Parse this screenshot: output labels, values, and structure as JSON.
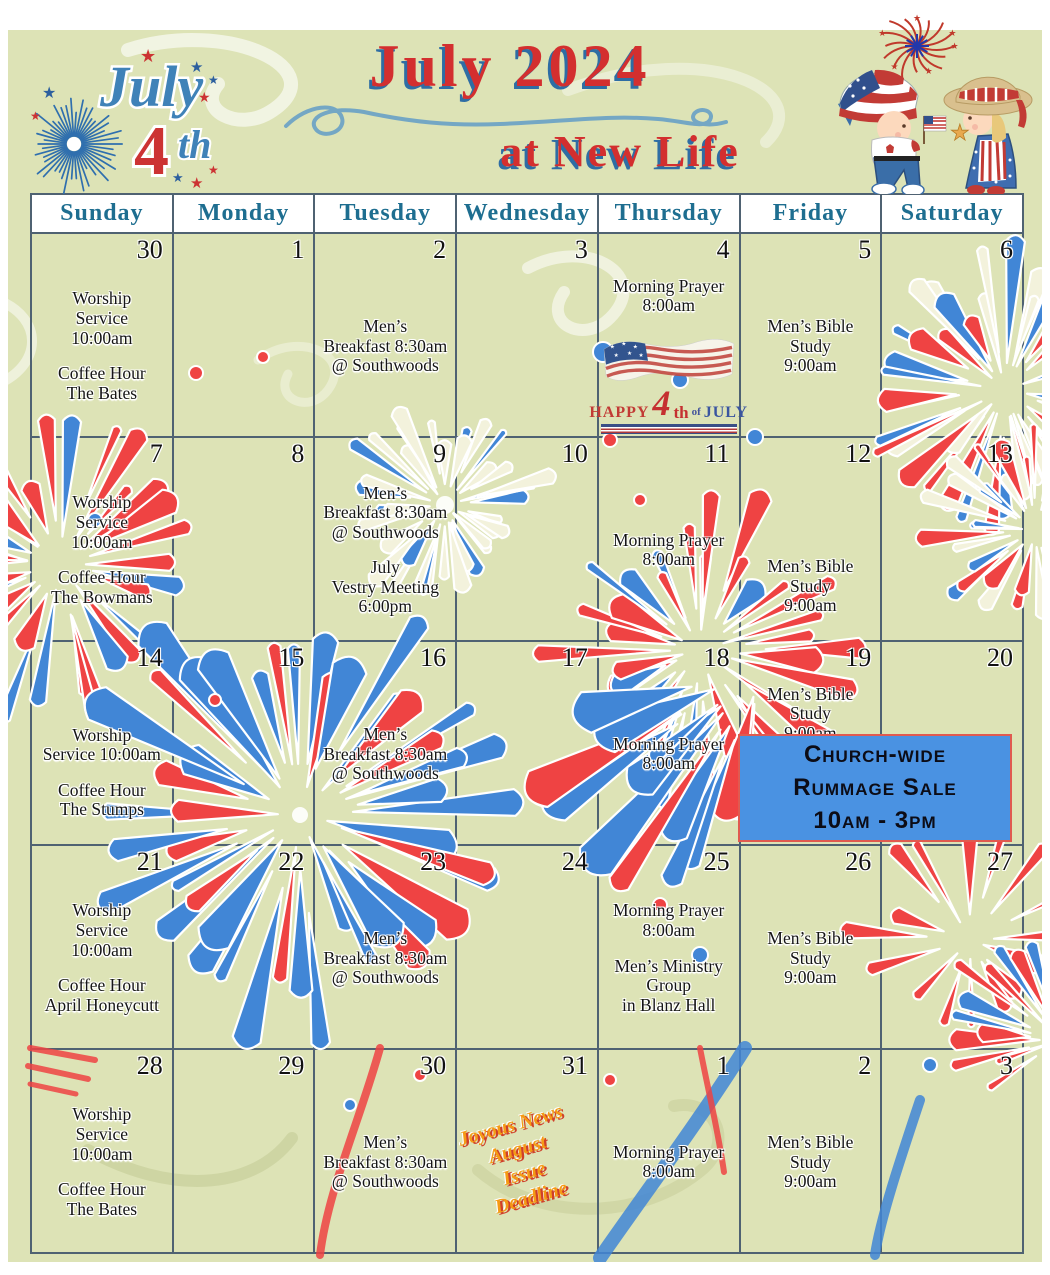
{
  "header": {
    "month_year": "July 2024",
    "subtitle": "at New Life",
    "logo": {
      "july": "July",
      "four": "4",
      "th": "th"
    }
  },
  "day_headers": [
    "Sunday",
    "Monday",
    "Tuesday",
    "Wednesday",
    "Thursday",
    "Friday",
    "Saturday"
  ],
  "weeks": [
    [
      {
        "date": "30",
        "events": [
          [
            "Worship",
            "Service",
            "10:00am"
          ],
          [
            "Coffee Hour",
            "The Bates"
          ]
        ]
      },
      {
        "date": "1",
        "events": []
      },
      {
        "date": "2",
        "events": [
          [
            "Men’s",
            "Breakfast 8:30am",
            "@ Southwoods"
          ]
        ]
      },
      {
        "date": "3",
        "events": []
      },
      {
        "date": "4",
        "events": [
          [
            "Morning Prayer",
            "8:00am"
          ]
        ],
        "happy4th": true
      },
      {
        "date": "5",
        "events": [
          [
            "Men’s Bible",
            "Study",
            "9:00am"
          ]
        ]
      },
      {
        "date": "6",
        "events": []
      }
    ],
    [
      {
        "date": "7",
        "events": [
          [
            "Worship",
            "Service",
            "10:00am"
          ],
          [
            "Coffee Hour",
            "The Bowmans"
          ]
        ]
      },
      {
        "date": "8",
        "events": []
      },
      {
        "date": "9",
        "events": [
          [
            "Men’s",
            "Breakfast 8:30am",
            "@ Southwoods"
          ],
          [
            "July",
            "Vestry Meeting",
            "6:00pm"
          ]
        ]
      },
      {
        "date": "10",
        "events": []
      },
      {
        "date": "11",
        "events": [
          [
            "Morning Prayer",
            "8:00am"
          ]
        ]
      },
      {
        "date": "12",
        "events": [
          [
            "Men’s Bible",
            "Study",
            "9:00am"
          ]
        ]
      },
      {
        "date": "13",
        "events": []
      }
    ],
    [
      {
        "date": "14",
        "events": [
          [
            "Worship",
            "Service 10:00am"
          ],
          [
            "Coffee Hour",
            "The Stumps"
          ]
        ]
      },
      {
        "date": "15",
        "events": []
      },
      {
        "date": "16",
        "events": [
          [
            "Men’s",
            "Breakfast 8:30am",
            "@ Southwoods"
          ]
        ]
      },
      {
        "date": "17",
        "events": []
      },
      {
        "date": "18",
        "events": [
          [
            "Morning Prayer",
            "8:00am"
          ]
        ]
      },
      {
        "date": "19",
        "events": [
          [
            "Men’s Bible",
            "Study",
            "9:00am"
          ]
        ]
      },
      {
        "date": "20",
        "events": []
      }
    ],
    [
      {
        "date": "21",
        "events": [
          [
            "Worship",
            "Service",
            "10:00am"
          ],
          [
            "Coffee Hour",
            "April Honeycutt"
          ]
        ]
      },
      {
        "date": "22",
        "events": []
      },
      {
        "date": "23",
        "events": [
          [
            "Men’s",
            "Breakfast 8:30am",
            "@ Southwoods"
          ]
        ]
      },
      {
        "date": "24",
        "events": []
      },
      {
        "date": "25",
        "events": [
          [
            "Morning Prayer",
            "8:00am"
          ],
          [
            "Men’s Ministry",
            "Group",
            "in Blanz Hall"
          ]
        ]
      },
      {
        "date": "26",
        "events": [
          [
            "Men’s Bible",
            "Study",
            "9:00am"
          ]
        ]
      },
      {
        "date": "27",
        "events": []
      }
    ],
    [
      {
        "date": "28",
        "events": [
          [
            "Worship",
            "Service",
            "10:00am"
          ],
          [
            "Coffee Hour",
            "The Bates"
          ]
        ]
      },
      {
        "date": "29",
        "events": []
      },
      {
        "date": "30",
        "events": [
          [
            "Men’s",
            "Breakfast 8:30am",
            "@ Southwoods"
          ]
        ]
      },
      {
        "date": "31",
        "events": [],
        "joyous": true
      },
      {
        "date": "1",
        "events": [
          [
            "Morning Prayer",
            "8:00am"
          ]
        ]
      },
      {
        "date": "2",
        "events": [
          [
            "Men’s Bible",
            "Study",
            "9:00am"
          ]
        ]
      },
      {
        "date": "3",
        "events": []
      }
    ]
  ],
  "banner": {
    "lines": [
      "Church-wide",
      "Rummage Sale",
      "10am - 3pm"
    ]
  },
  "joyous_note": {
    "lines": [
      "Joyous News",
      "August",
      "Issue",
      "Deadline"
    ]
  },
  "happy_4th": {
    "happy": "HAPPY",
    "four": "4",
    "th": "th",
    "of": "of",
    "july": "JULY"
  },
  "colors": {
    "paper": "#dde3b6",
    "grid_line": "#4f6272",
    "heading_teal": "#1e6e90",
    "title_red": "#d32f2f",
    "title_shadow_blue": "#2e6da4",
    "banner_blue": "#4a92e2",
    "banner_border": "#e05a50",
    "firework_red": "#ef4343",
    "firework_blue": "#4186d6",
    "firework_cream": "#f3f2dc",
    "note_orange": "#f59a15"
  }
}
